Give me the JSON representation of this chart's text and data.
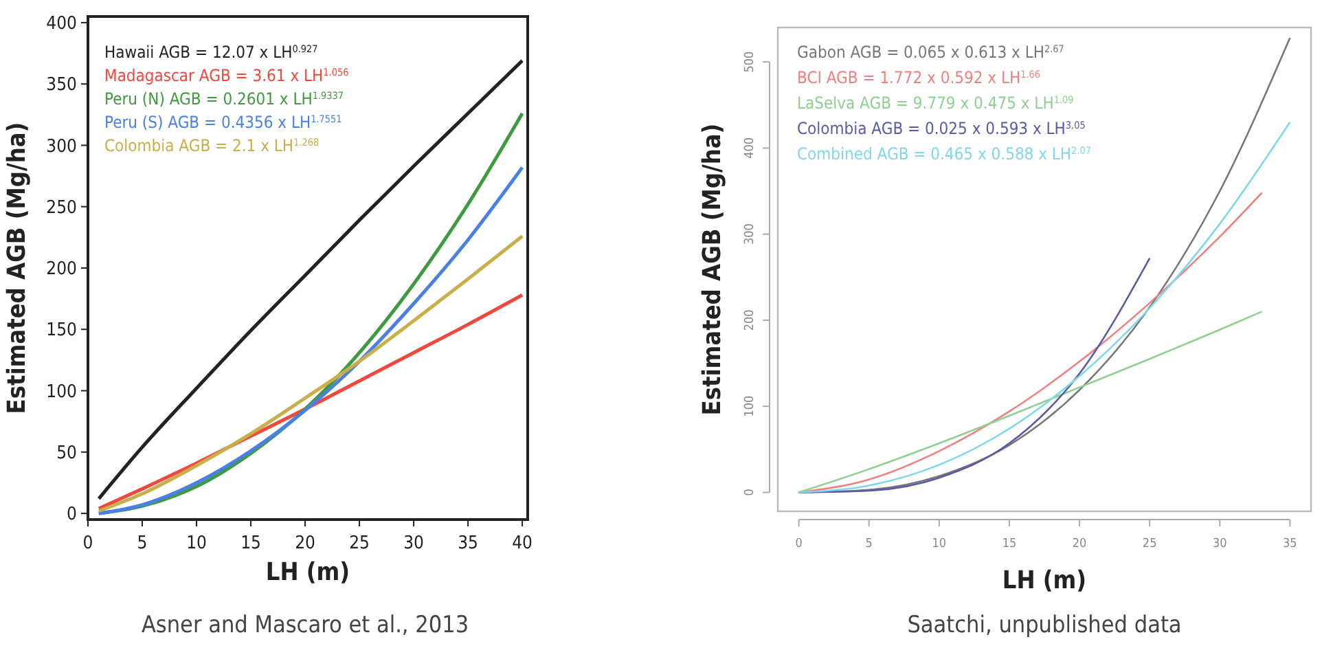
{
  "chart_data": [
    {
      "type": "line",
      "xlabel": "LH (m)",
      "ylabel": "Estimated AGB (Mg/ha)",
      "annotations": [
        "Asner and Mascaro et al., 2013"
      ],
      "xlim": [
        0,
        40.5
      ],
      "ylim": [
        -5,
        405
      ],
      "xticks": [
        0,
        5,
        10,
        15,
        20,
        25,
        30,
        35,
        40
      ],
      "yticks": [
        0,
        50,
        100,
        150,
        200,
        250,
        300,
        350,
        400
      ],
      "grid": false,
      "legend": "top left",
      "marker": "none",
      "line_style": "solid",
      "x": [
        1,
        5,
        10,
        15,
        20,
        25,
        30,
        35,
        40
      ],
      "series": [
        {
          "name": "Hawaii AGB = 12.07 x LH$^{0.927}$",
          "color": "#222222",
          "values": [
            12,
            54,
            102,
            149,
            194,
            239,
            283,
            326,
            369
          ]
        },
        {
          "name": "Madagascar AGB = 3.61 x LH$^{1.056}$",
          "color": "#f0483c",
          "values": [
            4,
            20,
            41,
            63,
            85,
            108,
            131,
            154,
            178
          ]
        },
        {
          "name": "Peru (N) AGB = 0.2601 x LH$^{1.9337}$",
          "color": "#3f9a3f",
          "values": [
            0,
            6,
            22,
            49,
            85,
            131,
            187,
            252,
            326
          ]
        },
        {
          "name": "Peru (S) AGB = 0.4356 x LH$^{1.7551}$",
          "color": "#4a7fe8",
          "values": [
            0,
            7,
            25,
            51,
            84,
            124,
            171,
            223,
            282
          ]
        },
        {
          "name": "Colombia AGB = 2.1 x LH$^{1.268}$",
          "color": "#c9ae4a",
          "values": [
            2,
            16,
            39,
            65,
            94,
            124,
            157,
            191,
            226
          ]
        }
      ]
    },
    {
      "type": "line",
      "xlabel": "LH (m)",
      "ylabel": "Estimated AGB (Mg/ha)",
      "annotations": [
        "Saatchi, unpublished data"
      ],
      "xlim": [
        -1.5,
        36.5
      ],
      "ylim": [
        -22,
        540
      ],
      "xticks": [
        0,
        5,
        10,
        15,
        20,
        25,
        30,
        35
      ],
      "yticks": [
        0,
        100,
        200,
        300,
        400,
        500
      ],
      "grid": false,
      "legend": "top left",
      "marker": "none",
      "line_style": "solid",
      "series": [
        {
          "name": "Gabon AGB = 0.065 x 0.613 x LH$^{2.67}$",
          "color": "#777777",
          "x": [
            0,
            5,
            10,
            15,
            20,
            25,
            30,
            35
          ],
          "values": [
            0,
            3,
            19,
            55,
            119,
            215,
            350,
            528
          ]
        },
        {
          "name": "BCI AGB = 1.772 x 0.592 x LH$^{1.66}$",
          "color": "#f08080",
          "x": [
            0,
            5,
            10,
            15,
            20,
            25,
            30,
            33
          ],
          "values": [
            0,
            15,
            48,
            94,
            152,
            220,
            297,
            348
          ]
        },
        {
          "name": "LaSelva AGB = 9.779 x 0.475 x LH$^{1.09}$",
          "color": "#8fcf8f",
          "x": [
            0,
            5,
            10,
            15,
            20,
            25,
            30,
            33
          ],
          "values": [
            0,
            27,
            57,
            89,
            122,
            155,
            189,
            210
          ]
        },
        {
          "name": "Colombia AGB = 0.025 x 0.593 x LH$^{3.05}$",
          "color": "#5a5aa8",
          "x": [
            0,
            5,
            10,
            15,
            20,
            25
          ],
          "values": [
            0,
            2,
            17,
            57,
            138,
            272
          ]
        },
        {
          "name": "Combined AGB = 0.465 x 0.588 x LH$^{2.07}$",
          "color": "#7fd8e8",
          "x": [
            0,
            5,
            10,
            15,
            20,
            25,
            30,
            35
          ],
          "values": [
            0,
            8,
            32,
            74,
            135,
            214,
            312,
            430
          ]
        }
      ]
    }
  ]
}
